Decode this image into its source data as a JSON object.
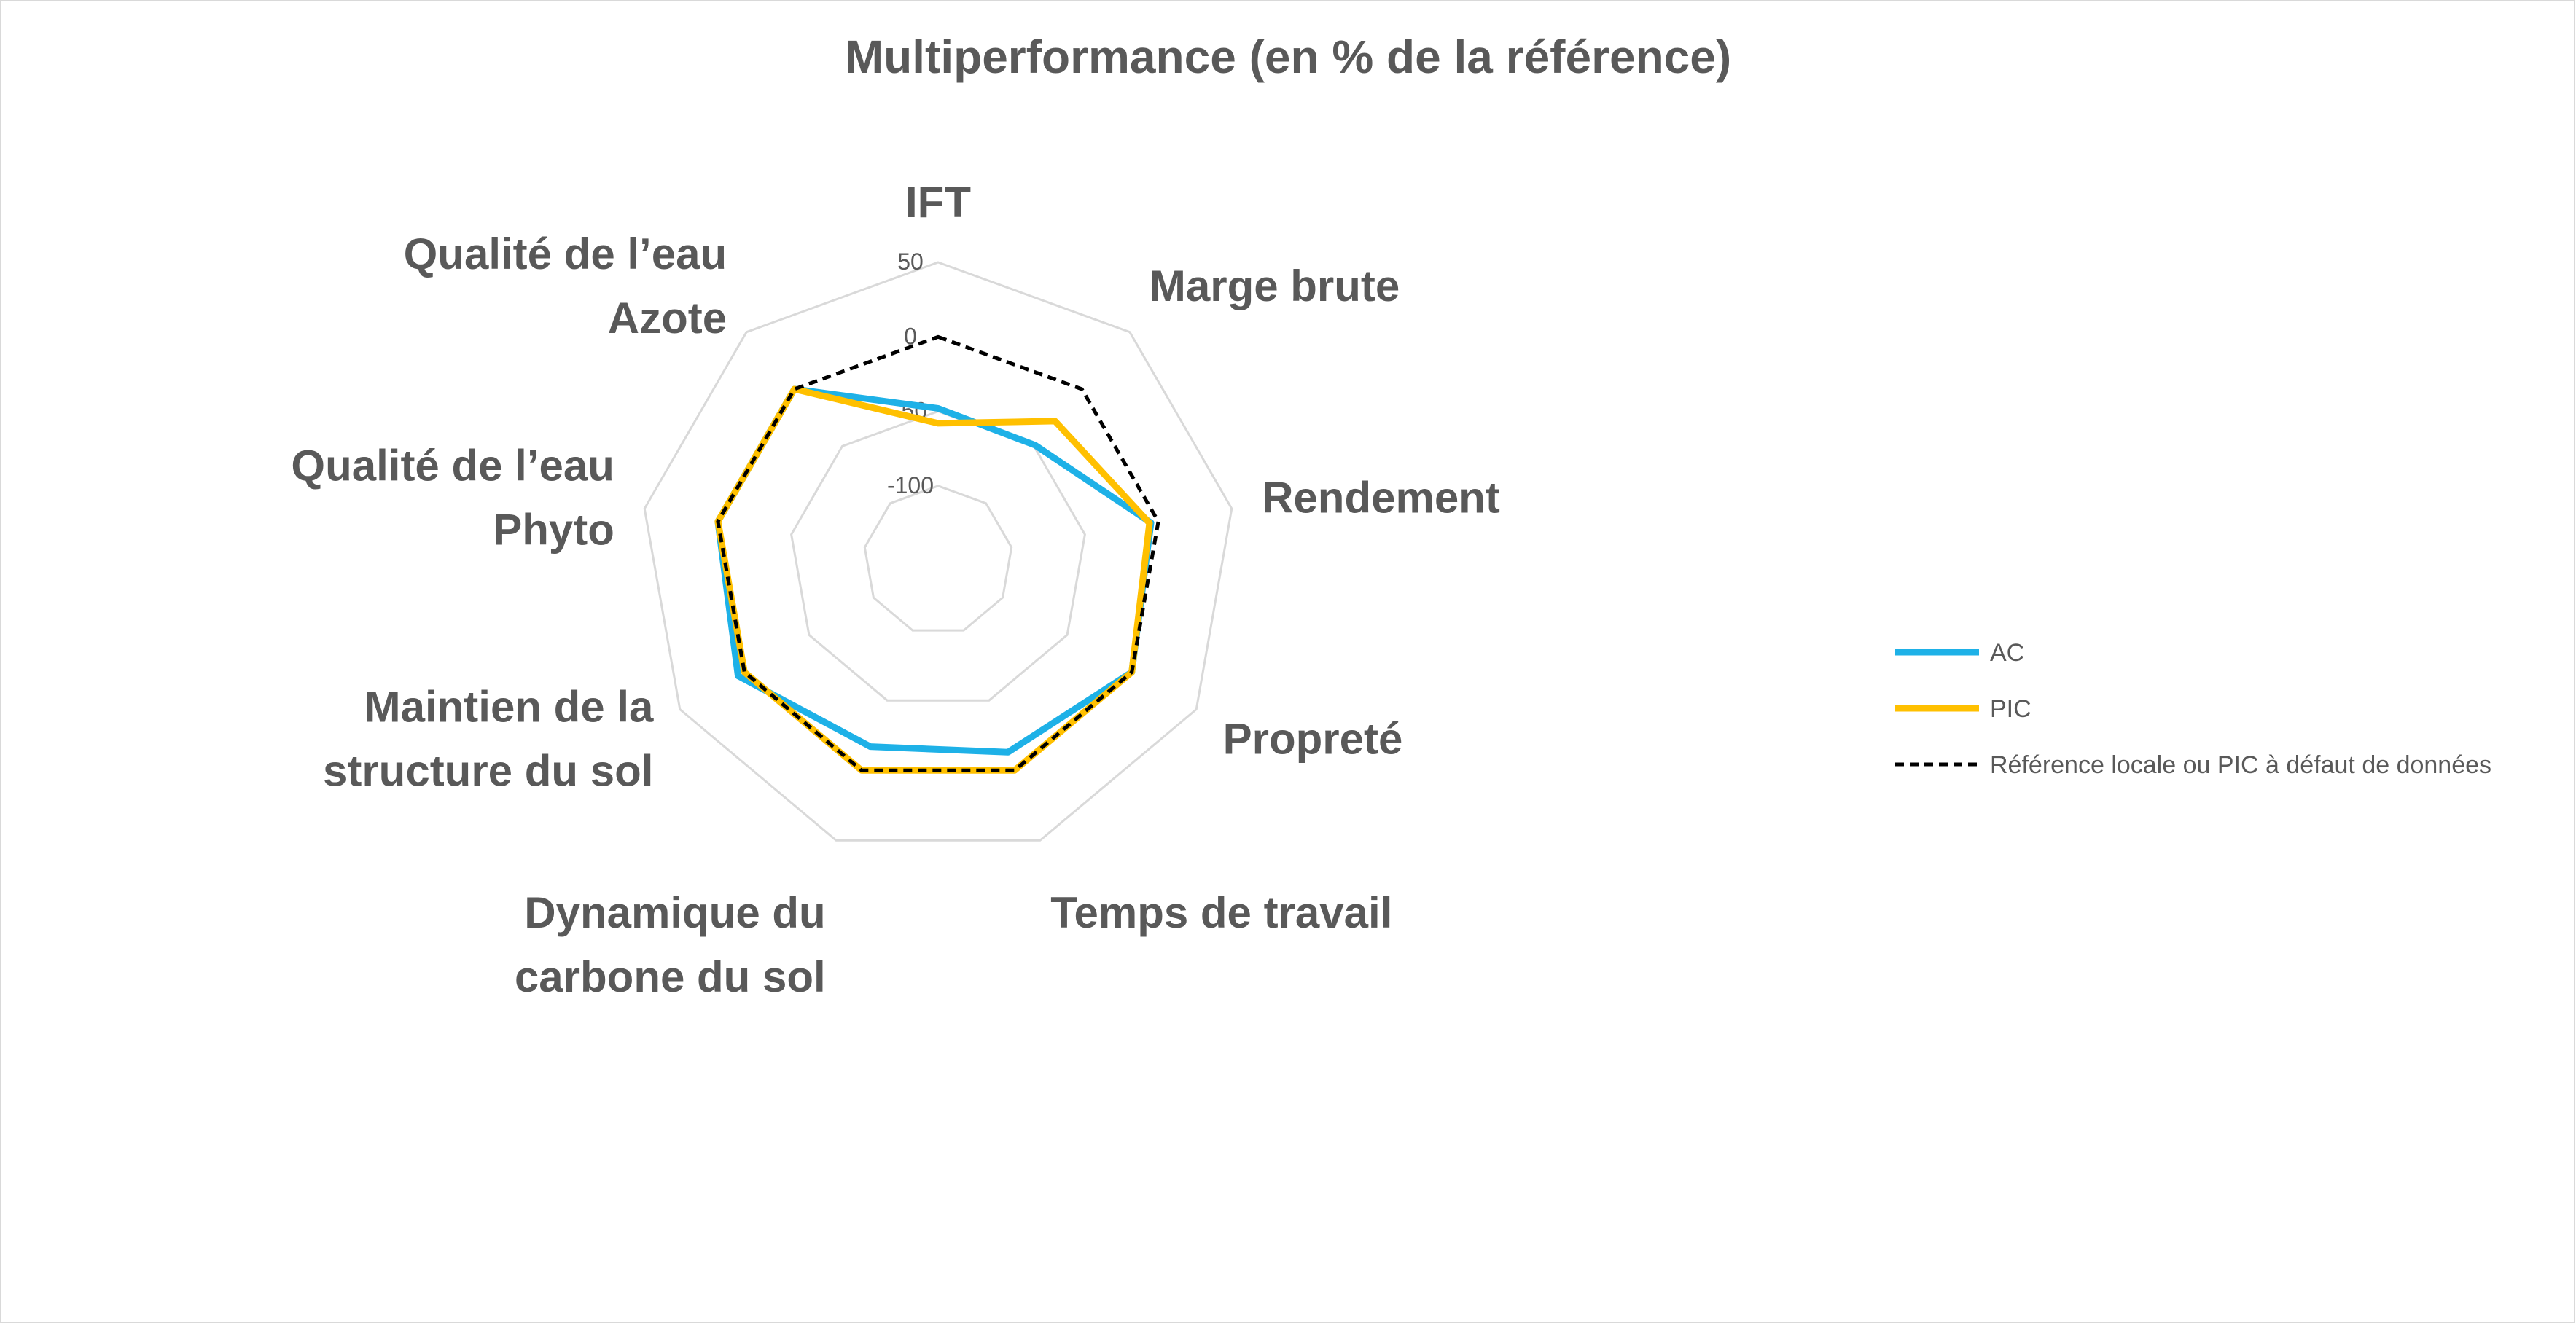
{
  "chart_data": {
    "type": "radar",
    "title": "Multiperformance (en % de la référence)",
    "categories": [
      [
        "IFT"
      ],
      [
        "Marge brute"
      ],
      [
        "Rendement"
      ],
      [
        "Propreté"
      ],
      [
        "Temps de travail"
      ],
      [
        "Dynamique du",
        "carbone du sol"
      ],
      [
        "Maintien de la",
        "structure du sol"
      ],
      [
        "Qualité de l’eau",
        "Phyto"
      ],
      [
        "Qualité de l’eau",
        "Azote"
      ]
    ],
    "rlim": [
      -150,
      50
    ],
    "ticks": [
      50,
      0,
      -50,
      -100
    ],
    "tick_labels": [
      "50",
      "0",
      "-50",
      "-100"
    ],
    "series": [
      {
        "name": "AC",
        "color": "#1EB1E7",
        "style": "solid",
        "values": [
          -48,
          -49,
          -5,
          0,
          -13,
          -17,
          5,
          0,
          0
        ]
      },
      {
        "name": "PIC",
        "color": "#FFC000",
        "style": "solid",
        "values": [
          -58,
          -28,
          -6,
          0,
          0,
          0,
          0,
          0,
          0
        ]
      },
      {
        "name": "Référence locale ou PIC à défaut de données",
        "color": "#000000",
        "style": "dashed",
        "values": [
          0,
          0,
          0,
          0,
          0,
          0,
          0,
          0,
          0
        ]
      }
    ],
    "grid": true,
    "legend_position": "right"
  }
}
